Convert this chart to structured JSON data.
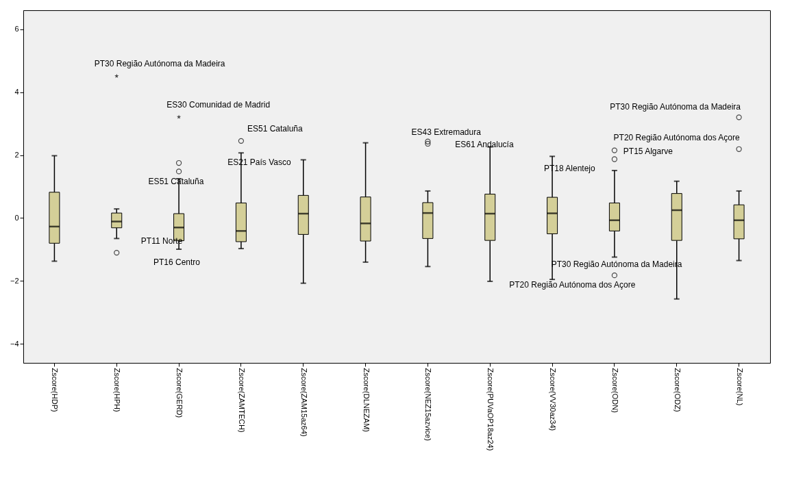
{
  "chart_data": {
    "type": "box",
    "categories": [
      "Zscore(HDP)",
      "Zscore(HPH)",
      "Zscore(GERD)",
      "Zscore(ZAMTECH)",
      "Zscore(ZAM15az64)",
      "Zscore(DLNEZAM)",
      "Zscore(NEZ15azvice)",
      "Zscore(PUVaOP18az24)",
      "Zscore(VV30az34)",
      "Zscore(ODN)",
      "Zscore(ODZ)",
      "Zscore(NL)"
    ],
    "color": "#d4cf98",
    "boxes": [
      {
        "low": -1.37,
        "q1": -0.8,
        "median": -0.27,
        "q3": 0.82,
        "high": 1.98
      },
      {
        "low": -0.65,
        "q1": -0.31,
        "median": -0.11,
        "q3": 0.16,
        "high": 0.29,
        "outliers": [
          -1.1
        ]
      },
      {
        "low": -0.99,
        "q1": -0.72,
        "median": -0.3,
        "q3": 0.14,
        "high": 1.25,
        "outliers": [
          1.75,
          1.48
        ]
      },
      {
        "low": -0.97,
        "q1": -0.75,
        "median": -0.41,
        "q3": 0.48,
        "high": 2.07,
        "outliers": [
          2.45
        ]
      },
      {
        "low": -2.07,
        "q1": -0.52,
        "median": 0.14,
        "q3": 0.72,
        "high": 1.85
      },
      {
        "low": -1.4,
        "q1": -0.73,
        "median": -0.17,
        "q3": 0.67,
        "high": 2.39
      },
      {
        "low": -1.54,
        "q1": -0.65,
        "median": 0.16,
        "q3": 0.49,
        "high": 0.86,
        "outliers": [
          2.43,
          2.36
        ]
      },
      {
        "low": -2.01,
        "q1": -0.71,
        "median": 0.14,
        "q3": 0.76,
        "high": 2.26
      },
      {
        "low": -1.95,
        "q1": -0.5,
        "median": 0.15,
        "q3": 0.66,
        "high": 1.96
      },
      {
        "low": -1.24,
        "q1": -0.41,
        "median": -0.07,
        "q3": 0.48,
        "high": 1.51,
        "outliers": [
          2.15,
          1.87,
          -1.82
        ]
      },
      {
        "low": -2.57,
        "q1": -0.71,
        "median": 0.25,
        "q3": 0.78,
        "high": 1.17
      },
      {
        "low": -1.35,
        "q1": -0.66,
        "median": -0.07,
        "q3": 0.42,
        "high": 0.86,
        "outliers": [
          3.2,
          2.19
        ]
      }
    ],
    "series": [
      {
        "type": "scatter",
        "marker": "star",
        "color": "#000000",
        "x": [
          "Zscore(HPH)",
          "Zscore(GERD)"
        ],
        "values": [
          4.51,
          3.21
        ]
      }
    ],
    "ylim": [
      -4.6,
      6.6
    ],
    "yticks": [
      -4,
      -2,
      0,
      2,
      4,
      6
    ],
    "grid": false,
    "annotations": [
      "PT30 Região Autónoma da Madeira",
      "ES30 Comunidad de Madrid",
      "ES51 Cataluña",
      "ES21 País Vasco",
      "ES51 Cataluña",
      "PT11 Norte",
      "PT16 Centro",
      "ES43 Extremadura",
      "ES61 Andalucía",
      "PT30 Região Autónoma da Madeira",
      "PT20 Região Autónoma dos Açore",
      "PT15 Algarve",
      "PT18 Alentejo",
      "PT30 Região Autónoma da Madeira",
      "PT20 Região Autónoma dos Açore"
    ]
  }
}
